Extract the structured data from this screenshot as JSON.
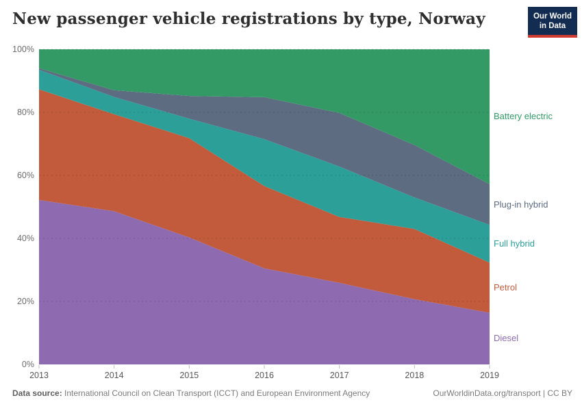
{
  "header": {
    "title": "New passenger vehicle registrations by type, Norway",
    "logo_line1": "Our World",
    "logo_line2": "in Data"
  },
  "chart_data": {
    "type": "area",
    "stacking": "percent",
    "title": "New passenger vehicle registrations by type, Norway",
    "x": [
      2013,
      2014,
      2015,
      2016,
      2017,
      2018,
      2019
    ],
    "xtick_labels": [
      "2013",
      "2014",
      "2015",
      "2016",
      "2017",
      "2018",
      "2019"
    ],
    "series": [
      {
        "name": "Diesel",
        "color": "#8e6bb1",
        "values": [
          52.2,
          48.6,
          40.3,
          30.5,
          25.9,
          20.7,
          16.4
        ]
      },
      {
        "name": "Petrol",
        "color": "#c25b3c",
        "values": [
          35.1,
          30.8,
          31.5,
          26.1,
          20.9,
          22.3,
          15.9
        ]
      },
      {
        "name": "Full hybrid",
        "color": "#2d9f99",
        "values": [
          6.2,
          5.5,
          6.2,
          14.9,
          16.0,
          10.0,
          12.0
        ]
      },
      {
        "name": "Plug-in hybrid",
        "color": "#5d6c80",
        "values": [
          0.5,
          2.1,
          7.2,
          13.3,
          17.0,
          16.6,
          12.9
        ]
      },
      {
        "name": "Battery electric",
        "color": "#339a66",
        "values": [
          6.0,
          13.0,
          14.8,
          15.2,
          20.2,
          30.4,
          42.8
        ]
      }
    ],
    "ylim": [
      0,
      100
    ],
    "ytick_values": [
      0,
      20,
      40,
      60,
      80,
      100
    ],
    "ytick_labels": [
      "0%",
      "20%",
      "40%",
      "60%",
      "80%",
      "100%"
    ],
    "grid": true,
    "legend_position": "right"
  },
  "footer": {
    "source_label": "Data source:",
    "source_text": " International Council on Clean Transport (ICCT) and European Environment Agency",
    "link_text": "OurWorldinData.org/transport | CC BY"
  }
}
